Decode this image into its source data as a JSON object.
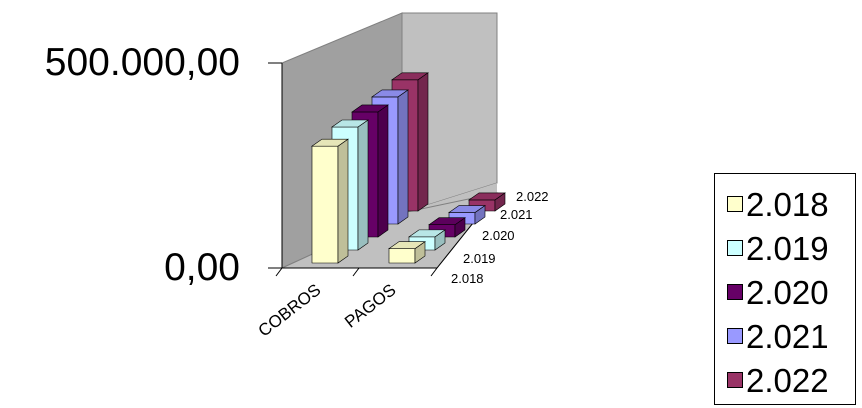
{
  "chart_data": {
    "type": "bar",
    "categories": [
      "COBROS",
      "PAGOS"
    ],
    "depth_labels": [
      "2.018",
      "2.019",
      "2.020",
      "2.021",
      "2.022"
    ],
    "series": [
      {
        "name": "2.018",
        "color": "#FFFFCC",
        "values": [
          285000,
          35000
        ]
      },
      {
        "name": "2.019",
        "color": "#CCFFFF",
        "values": [
          300000,
          32000
        ]
      },
      {
        "name": "2.020",
        "color": "#660066",
        "values": [
          305000,
          30000
        ]
      },
      {
        "name": "2.021",
        "color": "#9999FF",
        "values": [
          310000,
          28000
        ]
      },
      {
        "name": "2.022",
        "color": "#993366",
        "values": [
          320000,
          27000
        ]
      }
    ],
    "yticks": [
      "0,00",
      "500.000,00"
    ],
    "ylim": [
      0,
      500000
    ],
    "legend_position": "right",
    "grid": false,
    "style": "3d-column"
  }
}
